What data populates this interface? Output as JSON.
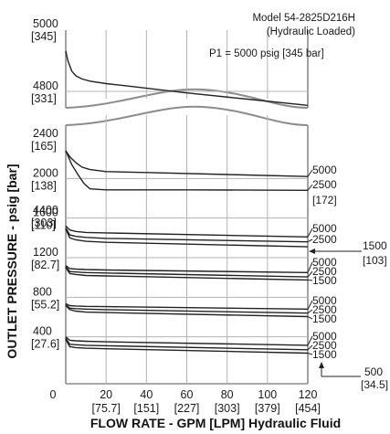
{
  "chart_data": {
    "type": "line",
    "title": "Model 54-2825D216H",
    "subtitle": "(Hydraulic Loaded)",
    "xlabel": "FLOW RATE - GPM [LPM] Hydraulic Fluid",
    "ylabel": "OUTLET PRESSURE - psig [bar]",
    "xlim": [
      0,
      120
    ],
    "x_ticks": [
      "0",
      "20",
      "40",
      "60",
      "80",
      "100",
      "120"
    ],
    "x_ticks_sub": [
      "",
      "[75.7]",
      "[151]",
      "[227]",
      "[303]",
      "[379]",
      "[454]"
    ],
    "upper_panel": {
      "ylim": [
        4300,
        5000
      ],
      "y_ticks": [
        "5000",
        "4800",
        "4400"
      ],
      "y_ticks_sub": [
        "[345]",
        "[331]",
        "[303]"
      ],
      "annotation": "P1 = 5000 psig [345 bar]",
      "series": [
        {
          "x": [
            0,
            1,
            3,
            5,
            8,
            12,
            20,
            30,
            60,
            90,
            120
          ],
          "y": [
            4930,
            4900,
            4865,
            4850,
            4840,
            4833,
            4825,
            4818,
            4795,
            4775,
            4755
          ]
        }
      ]
    },
    "lower_panel": {
      "ylim": [
        0,
        2500
      ],
      "y_ticks": [
        "2400",
        "2000",
        "1600",
        "1200",
        "800",
        "400",
        "0"
      ],
      "y_ticks_sub": [
        "[165]",
        "[138]",
        "[110]",
        "[82.7]",
        "[55.2]",
        "[27.6]",
        ""
      ],
      "setpoint_labels": [
        {
          "psi": "1500",
          "bar": "[103]"
        },
        {
          "psi": "500",
          "bar": "[34.5]"
        }
      ],
      "series": [
        {
          "name": "5000",
          "x": [
            0,
            2,
            5,
            8,
            12,
            20,
            40,
            80,
            120
          ],
          "y": [
            2280,
            2220,
            2160,
            2115,
            2090,
            2070,
            2060,
            2040,
            2020
          ],
          "end_label": "5000"
        },
        {
          "name": "2500",
          "x": [
            0,
            3,
            6,
            9,
            12,
            20,
            60,
            120
          ],
          "y": [
            2280,
            2140,
            2040,
            1950,
            1895,
            1885,
            1885,
            1880
          ],
          "end_label": "2500",
          "end_label_sub": "[172]"
        },
        {
          "group": "1500",
          "x": [
            0,
            2,
            5,
            10,
            20,
            120
          ],
          "y": [
            1520,
            1480,
            1465,
            1455,
            1450,
            1410
          ],
          "end_label": "5000"
        },
        {
          "group": "1500",
          "x": [
            0,
            2,
            5,
            10,
            20,
            120
          ],
          "y": [
            1500,
            1430,
            1415,
            1405,
            1395,
            1360
          ],
          "end_label": "2500"
        },
        {
          "group": "1500",
          "x": [
            0,
            2,
            5,
            10,
            20,
            120
          ],
          "y": [
            1490,
            1400,
            1380,
            1365,
            1355,
            1310
          ],
          "end_label": ""
        },
        {
          "group": "1200",
          "x": [
            0,
            2,
            5,
            10,
            20,
            120
          ],
          "y": [
            1120,
            1090,
            1085,
            1080,
            1075,
            1050
          ],
          "end_label": "5000"
        },
        {
          "group": "1200",
          "x": [
            0,
            2,
            5,
            10,
            20,
            120
          ],
          "y": [
            1110,
            1060,
            1055,
            1050,
            1045,
            1005
          ],
          "end_label": "2500"
        },
        {
          "group": "1200",
          "x": [
            0,
            2,
            5,
            10,
            20,
            120
          ],
          "y": [
            1100,
            1040,
            1030,
            1020,
            1015,
            975
          ],
          "end_label": "1500"
        },
        {
          "group": "800",
          "x": [
            0,
            2,
            5,
            10,
            20,
            120
          ],
          "y": [
            735,
            715,
            712,
            708,
            705,
            680
          ],
          "end_label": "5000"
        },
        {
          "group": "800",
          "x": [
            0,
            2,
            5,
            10,
            20,
            120
          ],
          "y": [
            725,
            690,
            685,
            680,
            675,
            640
          ],
          "end_label": "2500"
        },
        {
          "group": "800",
          "x": [
            0,
            2,
            5,
            10,
            20,
            120
          ],
          "y": [
            715,
            675,
            660,
            650,
            645,
            605
          ],
          "end_label": "1500"
        },
        {
          "group": "400",
          "x": [
            0,
            2,
            5,
            10,
            20,
            120
          ],
          "y": [
            400,
            365,
            360,
            355,
            350,
            315
          ],
          "end_label": "5000"
        },
        {
          "group": "400",
          "x": [
            0,
            2,
            5,
            10,
            20,
            120
          ],
          "y": [
            385,
            325,
            320,
            315,
            310,
            270
          ],
          "end_label": "2500"
        },
        {
          "group": "400",
          "x": [
            0,
            2,
            5,
            10,
            20,
            120
          ],
          "y": [
            375,
            300,
            292,
            285,
            280,
            235
          ],
          "end_label": "1500"
        }
      ]
    }
  }
}
